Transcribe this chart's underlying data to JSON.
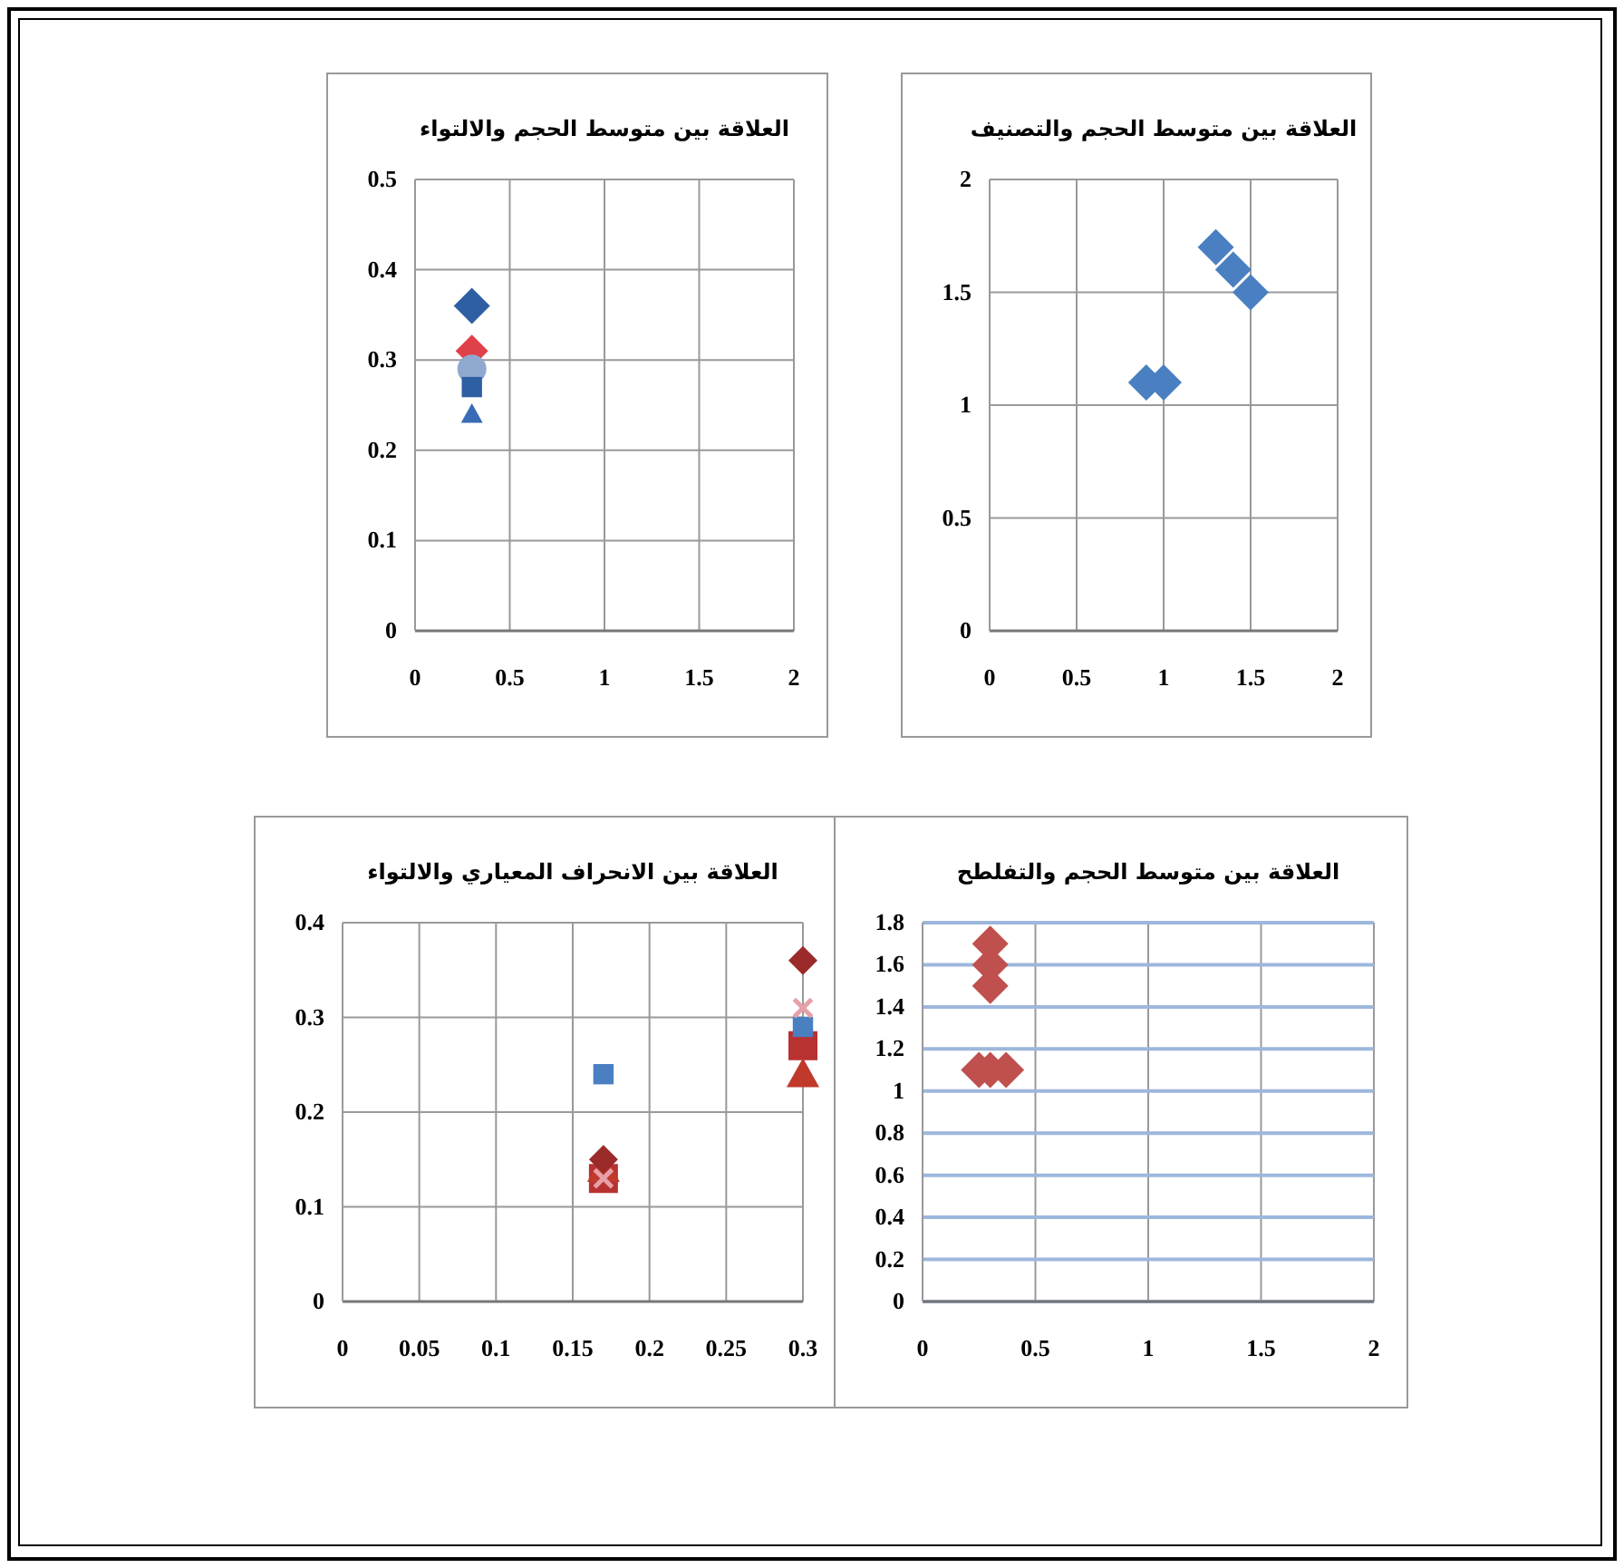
{
  "chart_data": [
    {
      "type": "scatter",
      "title": "العلاقة بين متوسط الحجم والالتواء",
      "xlim": [
        0,
        2
      ],
      "xticks": [
        0,
        0.5,
        1,
        1.5,
        2
      ],
      "ylim": [
        0,
        0.5
      ],
      "yticks": [
        0,
        0.1,
        0.2,
        0.3,
        0.4,
        0.5
      ],
      "grid": true,
      "series": [
        {
          "color": "#2e5fa3",
          "marker": "diamond",
          "x": [
            0.3
          ],
          "values": [
            0.36
          ]
        },
        {
          "color": "#e0404a",
          "marker": "diamond",
          "x": [
            0.3
          ],
          "values": [
            0.31
          ]
        },
        {
          "color": "#8fa8d0",
          "marker": "circle",
          "x": [
            0.3
          ],
          "values": [
            0.29
          ]
        },
        {
          "color": "#2e5fa3",
          "marker": "square",
          "x": [
            0.3
          ],
          "values": [
            0.27
          ]
        },
        {
          "color": "#3a6bb5",
          "marker": "triangle",
          "x": [
            0.3
          ],
          "values": [
            0.24
          ]
        }
      ]
    },
    {
      "type": "scatter",
      "title": "العلاقة بين متوسط الحجم والتصنيف",
      "xlim": [
        0,
        2
      ],
      "xticks": [
        0,
        0.5,
        1,
        1.5,
        2
      ],
      "ylim": [
        0,
        2
      ],
      "yticks": [
        0,
        0.5,
        1,
        1.5,
        2
      ],
      "grid": true,
      "series": [
        {
          "color": "#4a7fc1",
          "marker": "diamond",
          "x": [
            0.9,
            1.0,
            1.3,
            1.4,
            1.5
          ],
          "values": [
            1.1,
            1.1,
            1.7,
            1.6,
            1.5
          ]
        }
      ]
    },
    {
      "type": "scatter",
      "title": "العلاقة بين الانحراف المعياري والالتواء",
      "xlim": [
        0,
        0.3
      ],
      "xticks": [
        0,
        0.05,
        0.1,
        0.15,
        0.2,
        0.25,
        0.3
      ],
      "ylim": [
        0,
        0.4
      ],
      "yticks": [
        0,
        0.1,
        0.2,
        0.3,
        0.4
      ],
      "grid": true,
      "series": [
        {
          "color": "#b83232",
          "marker": "square",
          "x": [
            0.17,
            0.3
          ],
          "values": [
            0.13,
            0.27
          ]
        },
        {
          "color": "#c0392b",
          "marker": "triangle",
          "x": [
            0.17,
            0.3
          ],
          "values": [
            0.14,
            0.24
          ]
        },
        {
          "color": "#9b2a2a",
          "marker": "diamond",
          "x": [
            0.17,
            0.3
          ],
          "values": [
            0.15,
            0.36
          ]
        },
        {
          "color": "#4a7fc1",
          "marker": "square",
          "x": [
            0.17,
            0.3
          ],
          "values": [
            0.24,
            0.29
          ]
        },
        {
          "color": "#e8a0a8",
          "marker": "cross",
          "x": [
            0.17,
            0.3
          ],
          "values": [
            0.13,
            0.31
          ]
        }
      ]
    },
    {
      "type": "scatter",
      "title": "العلاقة بين متوسط الحجم والتفلطح",
      "xlim": [
        0,
        2
      ],
      "xticks": [
        0,
        0.5,
        1,
        1.5,
        2
      ],
      "ylim": [
        0,
        1.8
      ],
      "yticks": [
        0,
        0.2,
        0.4,
        0.6,
        0.8,
        1,
        1.2,
        1.4,
        1.6,
        1.8
      ],
      "grid": true,
      "series": [
        {
          "color": "#c0504d",
          "marker": "diamond",
          "x": [
            0.25,
            0.3,
            0.37,
            0.3,
            0.3,
            0.3
          ],
          "values": [
            1.1,
            1.1,
            1.1,
            1.7,
            1.6,
            1.5
          ]
        }
      ]
    }
  ]
}
